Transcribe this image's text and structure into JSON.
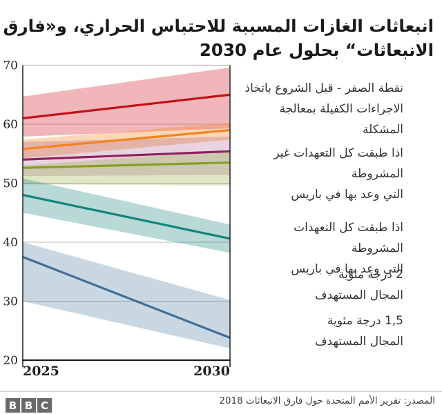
{
  "title_lines": [
    "انبعاثات الغازات المسببة للاحتباس الحراري، و«فارق",
    "الانبعاثات“ بحلول عام 2030"
  ],
  "legend": {
    "items": [
      {
        "color": "#c11219",
        "lines": [
          "نقطة الصفر - قبل الشروع باتخاذ",
          "الاجراءات الكفيلة بمعالجة المشكلة"
        ]
      },
      {
        "color": "#8e2160",
        "lines": [
          "اذا طبقت كل التعهدات غير",
          "المشروطة",
          "التي وعد بها في باريس"
        ]
      },
      {
        "color": "#84a01e",
        "lines": [
          "اذا طبقت كل التعهدات المشروطة",
          "التي وعد بها في باريس"
        ]
      },
      {
        "color": "#11837b",
        "lines": [
          "2 درجة مئوية",
          "المجال المستهدف"
        ]
      },
      {
        "color": "#3e6e96",
        "lines": [
          "1,5 درجة مئوية",
          "المجال المستهدف"
        ]
      }
    ]
  },
  "chart_data": {
    "type": "line",
    "x": [
      2025,
      2030
    ],
    "x_tick_labels": [
      "2025",
      "2030"
    ],
    "ylim": [
      20,
      70
    ],
    "yticks": [
      20,
      30,
      40,
      50,
      60,
      70
    ],
    "gridlines": [
      30,
      40,
      50,
      60
    ],
    "legend_position": "right",
    "series": [
      {
        "name": "نقطة الصفر - قبل الشروع باتخاذ الاجراءات الكفيلة بمعالجة المشكلة",
        "in_legend": true,
        "color": "#c11219",
        "band_color": "rgba(214,45,55,0.35)",
        "values": [
          61,
          65
        ],
        "band_low": [
          57.9,
          59.3
        ],
        "band_high": [
          64.7,
          69.6
        ]
      },
      {
        "name": "",
        "in_legend": false,
        "color": "#f5821f",
        "band_color": "rgba(245,130,32,0.32)",
        "values": [
          55.8,
          59
        ],
        "band_low": [
          54.2,
          57.4
        ],
        "band_high": [
          57.4,
          60.2
        ]
      },
      {
        "name": "اذا طبقت كل التعهدات غير المشروطة التي وعد بها في باريس",
        "in_legend": true,
        "color": "#8e2160",
        "band_color": "rgba(140,35,95,0.20)",
        "values": [
          54,
          55.4
        ],
        "band_low": [
          51.2,
          51.4
        ],
        "band_high": [
          57.0,
          57.9
        ]
      },
      {
        "name": "اذا طبقت كل التعهدات المشروطة التي وعد بها في باريس",
        "in_legend": true,
        "color": "#84a01e",
        "band_color": "rgba(130,160,30,0.25)",
        "values": [
          52.6,
          53.5
        ],
        "band_low": [
          49.8,
          49.6
        ],
        "band_high": [
          53.0,
          55.6
        ]
      },
      {
        "name": "2 درجة مئوية المجال المستهدف",
        "in_legend": true,
        "color": "#11837b",
        "band_color": "rgba(20,128,120,0.30)",
        "values": [
          48,
          40.6
        ],
        "band_low": [
          45.0,
          38.2
        ],
        "band_high": [
          50.8,
          43.0
        ]
      },
      {
        "name": "1,5 درجة مئوية المجال المستهدف",
        "in_legend": true,
        "color": "#3e6e96",
        "band_color": "rgba(62,110,150,0.28)",
        "values": [
          37.5,
          23.8
        ],
        "band_low": [
          30.0,
          22.0
        ],
        "band_high": [
          40.0,
          30.2
        ]
      }
    ]
  },
  "footer": {
    "source": "المصدر: تقرير الأمم المتحدة حول فارق الانبعاثات 2018",
    "logo_letters": [
      "B",
      "B",
      "C"
    ]
  }
}
